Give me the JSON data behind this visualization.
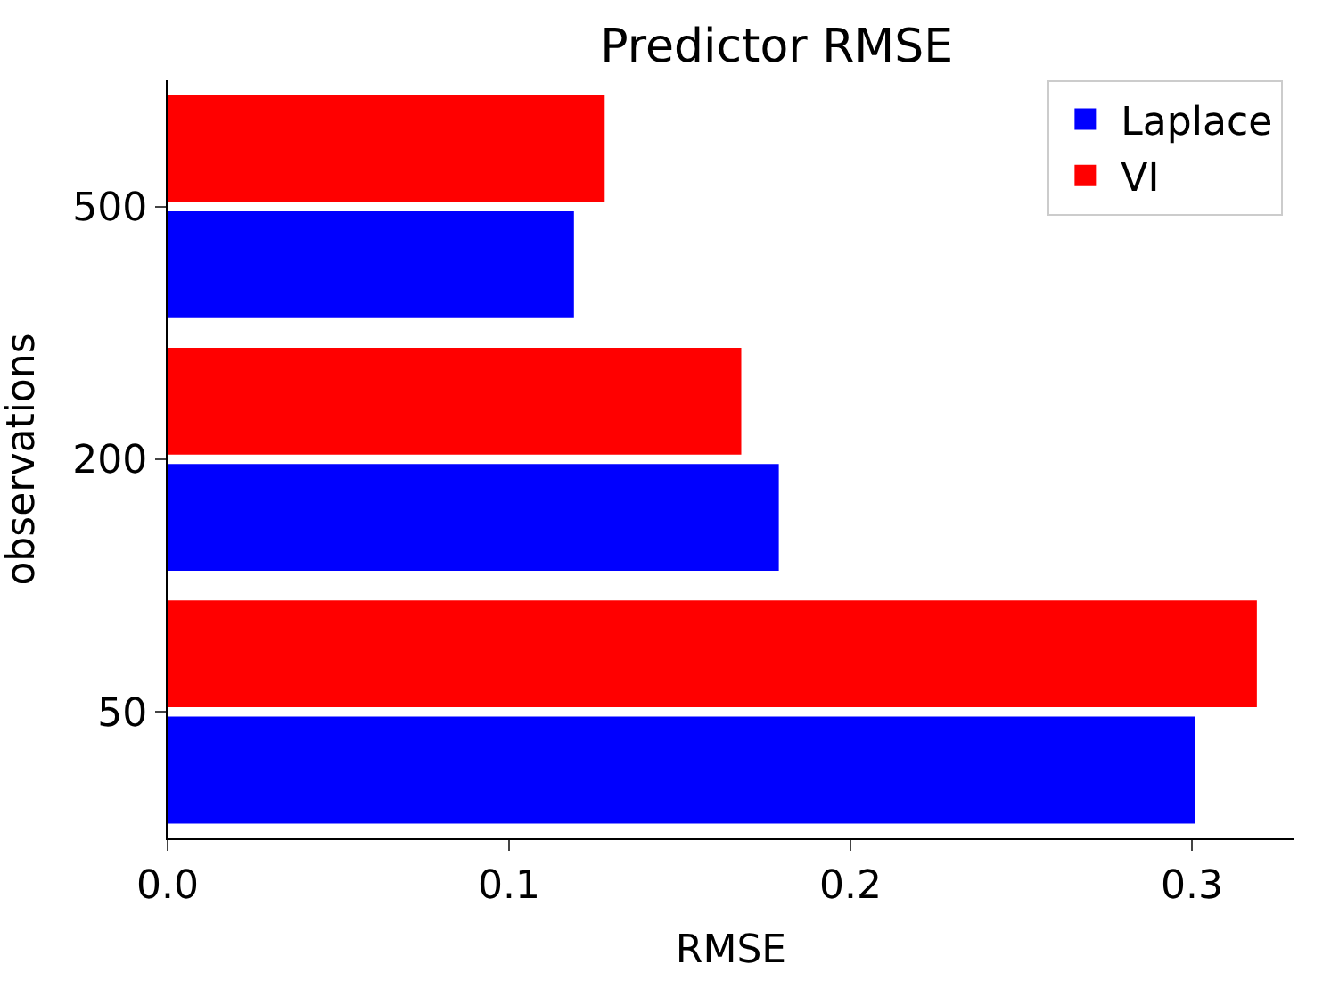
{
  "chart_data": {
    "type": "bar",
    "orientation": "horizontal",
    "title": "Predictor RMSE",
    "xlabel": "RMSE",
    "ylabel": "observations",
    "categories": [
      "500",
      "200",
      "50"
    ],
    "series": [
      {
        "name": "Laplace",
        "color": "#0000ff",
        "values": [
          0.119,
          0.179,
          0.301
        ]
      },
      {
        "name": "VI",
        "color": "#ff0000",
        "values": [
          0.128,
          0.168,
          0.319
        ]
      }
    ],
    "xlim": [
      0,
      0.33
    ],
    "xticks": [
      {
        "value": 0,
        "label": "0.0"
      },
      0.1,
      0.2,
      0.3
    ],
    "legend": "top right"
  }
}
